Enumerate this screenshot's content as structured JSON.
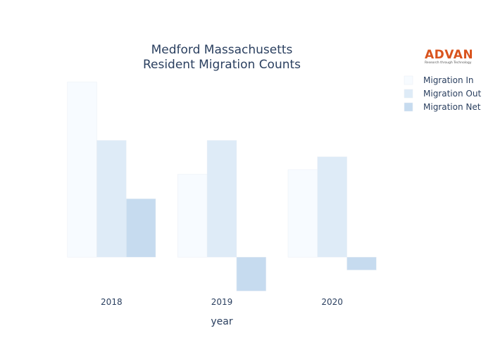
{
  "logo": {
    "name": "ADVAN",
    "tagline": "Research through Technology"
  },
  "chart_data": {
    "type": "bar",
    "title_lines": [
      "Medford Massachusetts",
      "Resident Migration Counts"
    ],
    "categories": [
      "2018",
      "2019",
      "2020"
    ],
    "xlabel": "year",
    "ylabel": "",
    "ylim": [
      -33,
      160
    ],
    "series": [
      {
        "name": "Migration In",
        "color": "#f7fbff",
        "values": [
          150,
          71,
          75
        ]
      },
      {
        "name": "Migration Out",
        "color": "#deebf7",
        "values": [
          100,
          100,
          86
        ]
      },
      {
        "name": "Migration Net",
        "color": "#c6dbef",
        "values": [
          50,
          -29,
          -11
        ]
      }
    ],
    "legend_position": "top-right",
    "grid": false
  }
}
